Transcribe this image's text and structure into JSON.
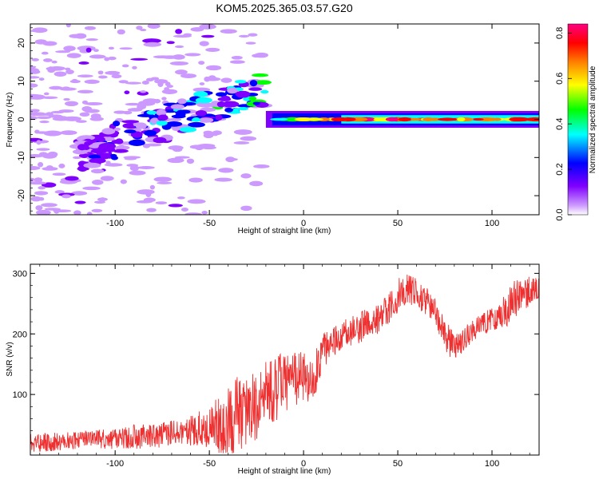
{
  "title": "KOM5.2025.365.03.57.G20",
  "chart_data": [
    {
      "type": "heatmap",
      "xlabel": "Height of straight line (km)",
      "ylabel": "Frequency (Hz)",
      "xlim": [
        -145,
        125
      ],
      "ylim": [
        -25,
        25
      ],
      "x_ticks": [
        -100,
        -50,
        0,
        50,
        100
      ],
      "y_ticks": [
        -20,
        -10,
        0,
        10,
        20
      ],
      "colorbar": {
        "label": "Normalized spectral amplitude",
        "range": [
          0,
          0.84
        ],
        "ticks": [
          0,
          0.2,
          0.4,
          0.6,
          0.8
        ],
        "tick_labels": [
          "0.0",
          "0.2",
          "0.4",
          "0.6",
          "0.8"
        ],
        "colors": [
          "#ffffff",
          "#cc99ff",
          "#8000ff",
          "#0000ff",
          "#00ffff",
          "#00ff00",
          "#ffff00",
          "#ff8000",
          "#ff0000",
          "#ff0080"
        ]
      },
      "features": [
        {
          "name": "carrier",
          "x_range": [
            -20,
            125
          ],
          "frequency_hz": 0,
          "amplitude_range": [
            0.3,
            0.84
          ]
        },
        {
          "name": "drifting tone",
          "x_range": [
            -120,
            -20
          ],
          "frequency_hz_range": [
            -9,
            8
          ],
          "amplitude_range": [
            0.1,
            0.4
          ]
        },
        {
          "name": "scatter noise",
          "x_range": [
            -145,
            -20
          ],
          "frequency_hz_range": [
            -25,
            25
          ],
          "amplitude_range": [
            0.02,
            0.15
          ]
        }
      ],
      "grid": false
    },
    {
      "type": "line",
      "xlabel": "Height of straight line (km)",
      "ylabel": "SNR (v/v)",
      "xlim": [
        -145,
        125
      ],
      "ylim": [
        0,
        315
      ],
      "x_ticks": [
        -100,
        -50,
        0,
        50,
        100
      ],
      "y_ticks": [
        100,
        200,
        300
      ],
      "color": "#ee3030",
      "series": [
        {
          "x": [
            -145,
            -130,
            -120,
            -110,
            -100,
            -90,
            -80,
            -70,
            -60,
            -50,
            -40,
            -35,
            -30,
            -25,
            -20,
            -15,
            -10,
            -5,
            0,
            5,
            10,
            15,
            20,
            25,
            30,
            35,
            40,
            45,
            50,
            55,
            60,
            65,
            70,
            75,
            80,
            85,
            90,
            95,
            100,
            105,
            110,
            115,
            120,
            125
          ],
          "y": [
            20,
            22,
            24,
            26,
            28,
            30,
            32,
            35,
            40,
            45,
            55,
            65,
            75,
            85,
            100,
            110,
            120,
            125,
            130,
            125,
            170,
            185,
            195,
            205,
            210,
            220,
            225,
            240,
            265,
            275,
            270,
            255,
            240,
            200,
            175,
            190,
            205,
            215,
            225,
            235,
            250,
            265,
            270,
            275
          ],
          "noise_amplitude": [
            15,
            15,
            15,
            16,
            18,
            20,
            20,
            22,
            25,
            35,
            60,
            70,
            55,
            60,
            55,
            55,
            50,
            45,
            40,
            40,
            30,
            25,
            25,
            25,
            25,
            25,
            25,
            25,
            30,
            25,
            25,
            25,
            25,
            25,
            25,
            20,
            20,
            20,
            20,
            25,
            35,
            30,
            25,
            25
          ]
        }
      ],
      "grid": false
    }
  ]
}
